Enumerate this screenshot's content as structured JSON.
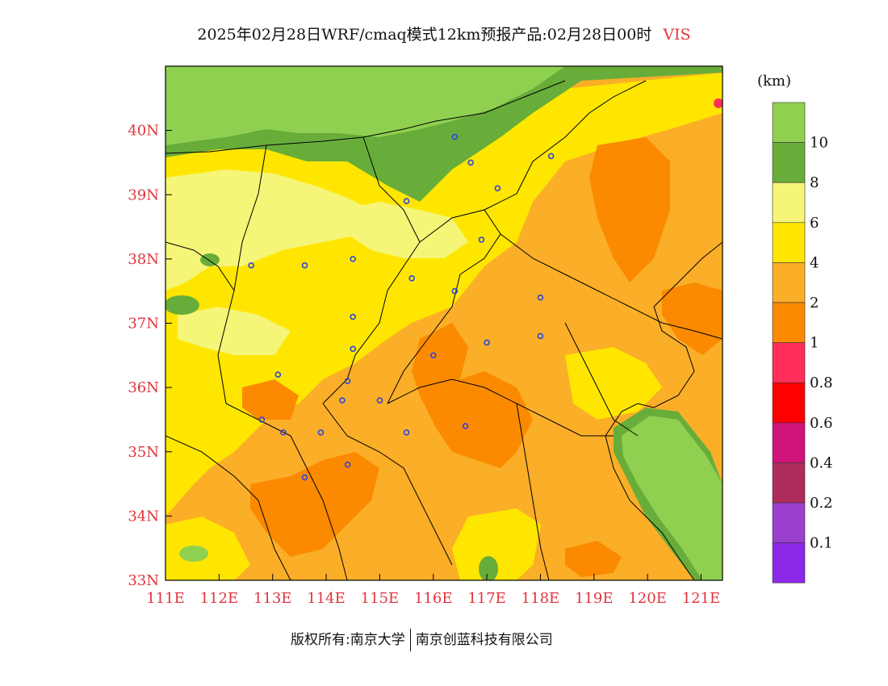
{
  "title": {
    "text": "2025年02月28日WRF/cmaq模式12km预报产品:02月28日00时",
    "variable": "VIS"
  },
  "map": {
    "lon_range": [
      111,
      121.4
    ],
    "lat_range": [
      33,
      41
    ],
    "lon_ticks": [
      "111E",
      "112E",
      "113E",
      "114E",
      "115E",
      "116E",
      "117E",
      "118E",
      "119E",
      "120E",
      "121E"
    ],
    "lat_ticks": [
      "33N",
      "34N",
      "35N",
      "36N",
      "37N",
      "38N",
      "39N",
      "40N"
    ],
    "cities": [
      [
        116.4,
        39.9
      ],
      [
        117.2,
        39.1
      ],
      [
        118.2,
        39.6
      ],
      [
        116.7,
        39.5
      ],
      [
        115.5,
        38.9
      ],
      [
        116.9,
        38.3
      ],
      [
        114.5,
        38.0
      ],
      [
        112.6,
        37.9
      ],
      [
        113.6,
        37.9
      ],
      [
        115.6,
        37.7
      ],
      [
        116.4,
        37.5
      ],
      [
        118.0,
        37.4
      ],
      [
        114.5,
        37.1
      ],
      [
        117.0,
        36.7
      ],
      [
        118.0,
        36.8
      ],
      [
        114.5,
        36.6
      ],
      [
        116.0,
        36.5
      ],
      [
        113.1,
        36.2
      ],
      [
        114.4,
        36.1
      ],
      [
        115.0,
        35.8
      ],
      [
        114.3,
        35.8
      ],
      [
        112.8,
        35.5
      ],
      [
        113.2,
        35.3
      ],
      [
        113.9,
        35.3
      ],
      [
        115.5,
        35.3
      ],
      [
        116.6,
        35.4
      ],
      [
        114.4,
        34.8
      ],
      [
        113.6,
        34.6
      ]
    ],
    "colors": {
      "vis_10_plus": "#90d050",
      "vis_8_10": "#68ad3a",
      "vis_6_8": "#f5f577",
      "vis_4_6": "#ffe600",
      "vis_2_4": "#fbae28",
      "vis_1_2": "#fb8a00",
      "city_marker": "#2c46d8"
    }
  },
  "legend": {
    "unit": "(km)",
    "items": [
      {
        "color": "#90d050",
        "label": ""
      },
      {
        "color": "#68ad3a",
        "label": "10"
      },
      {
        "color": "#f5f577",
        "label": "8"
      },
      {
        "color": "#ffe600",
        "label": "6"
      },
      {
        "color": "#fbae28",
        "label": "4"
      },
      {
        "color": "#fb8a00",
        "label": "2"
      },
      {
        "color": "#ff2e5a",
        "label": "1"
      },
      {
        "color": "#ff0000",
        "label": "0.8"
      },
      {
        "color": "#d0137a",
        "label": "0.6"
      },
      {
        "color": "#ae2c5c",
        "label": "0.4"
      },
      {
        "color": "#9b3fcf",
        "label": "0.2"
      },
      {
        "color": "#8c28e8",
        "label": "0.1"
      }
    ]
  },
  "footer": {
    "left": "版权所有:南京大学",
    "right": "南京创蓝科技有限公司"
  }
}
